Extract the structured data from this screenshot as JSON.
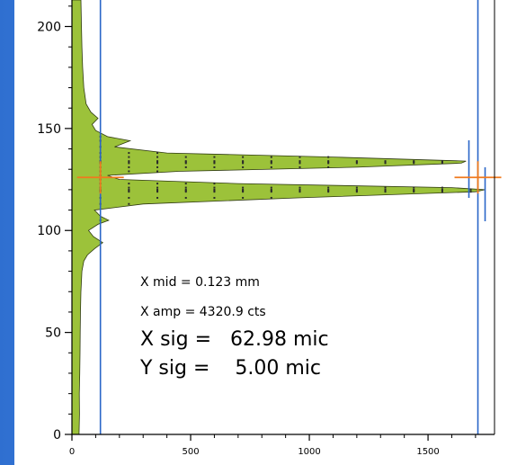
{
  "chart_data": {
    "type": "area",
    "orientation": "horizontal-profile",
    "title": "",
    "xlabel": "",
    "ylabel": "",
    "xlim": [
      0,
      1780
    ],
    "ylim": [
      0,
      213
    ],
    "x_ticks": [
      0,
      500,
      1000,
      1500
    ],
    "y_ticks": [
      0,
      50,
      100,
      150,
      200
    ],
    "grid": false,
    "legend": "none",
    "fill_color": "#9cc23a",
    "edge_color": "#2f3a12",
    "marker_color": "#2b2b2b",
    "vline_color": "#2a66c8",
    "cross_color": "#f07a1e",
    "profile": [
      {
        "y": 0,
        "x": 30
      },
      {
        "y": 10,
        "x": 32
      },
      {
        "y": 20,
        "x": 31
      },
      {
        "y": 30,
        "x": 33
      },
      {
        "y": 40,
        "x": 34
      },
      {
        "y": 50,
        "x": 35
      },
      {
        "y": 60,
        "x": 36
      },
      {
        "y": 70,
        "x": 38
      },
      {
        "y": 80,
        "x": 42
      },
      {
        "y": 85,
        "x": 50
      },
      {
        "y": 88,
        "x": 65
      },
      {
        "y": 91,
        "x": 95
      },
      {
        "y": 94,
        "x": 130
      },
      {
        "y": 97,
        "x": 90
      },
      {
        "y": 100,
        "x": 70
      },
      {
        "y": 103,
        "x": 110
      },
      {
        "y": 105,
        "x": 155
      },
      {
        "y": 107,
        "x": 120
      },
      {
        "y": 110,
        "x": 95
      },
      {
        "y": 113,
        "x": 300
      },
      {
        "y": 116,
        "x": 950
      },
      {
        "y": 119,
        "x": 1700
      },
      {
        "y": 120,
        "x": 1740
      },
      {
        "y": 121,
        "x": 1600
      },
      {
        "y": 123,
        "x": 700
      },
      {
        "y": 125,
        "x": 200
      },
      {
        "y": 127,
        "x": 150
      },
      {
        "y": 129,
        "x": 450
      },
      {
        "y": 131,
        "x": 1200
      },
      {
        "y": 133,
        "x": 1640
      },
      {
        "y": 134,
        "x": 1660
      },
      {
        "y": 136,
        "x": 1100
      },
      {
        "y": 138,
        "x": 400
      },
      {
        "y": 141,
        "x": 180
      },
      {
        "y": 144,
        "x": 245
      },
      {
        "y": 146,
        "x": 150
      },
      {
        "y": 149,
        "x": 100
      },
      {
        "y": 152,
        "x": 85
      },
      {
        "y": 155,
        "x": 110
      },
      {
        "y": 158,
        "x": 80
      },
      {
        "y": 162,
        "x": 60
      },
      {
        "y": 170,
        "x": 50
      },
      {
        "y": 180,
        "x": 45
      },
      {
        "y": 190,
        "x": 42
      },
      {
        "y": 200,
        "x": 40
      },
      {
        "y": 213,
        "x": 38
      }
    ],
    "peak_markers_y": [
      119.5,
      133.5
    ],
    "vertical_lines_x": [
      120,
      1710
    ],
    "cross_markers": [
      {
        "x": 120,
        "y": 126
      },
      {
        "x": 1710,
        "y": 126
      }
    ],
    "annotations": [
      {
        "text": "X mid =  0.123 mm",
        "size": "small"
      },
      {
        "text": "X amp =  4320.9 cts",
        "size": "small"
      },
      {
        "text": "X sig =   62.98 mic",
        "size": "big"
      },
      {
        "text": "Y sig =    5.00 mic",
        "size": "big"
      }
    ]
  }
}
